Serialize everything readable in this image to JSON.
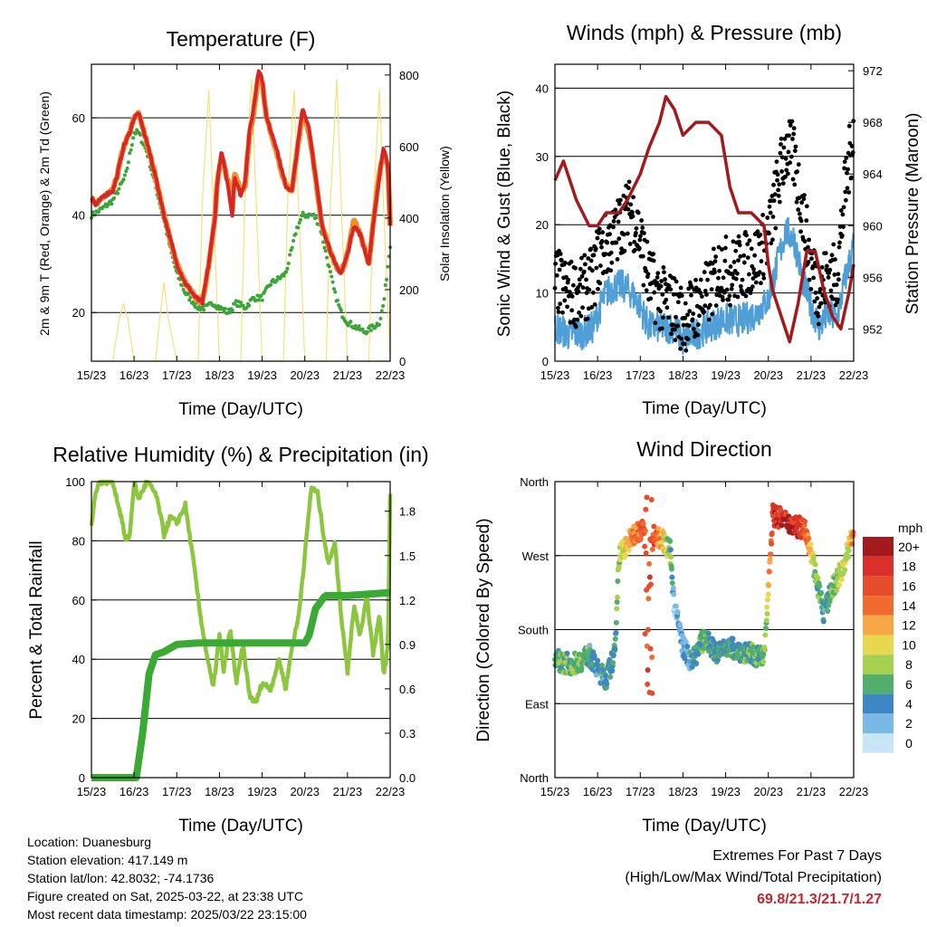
{
  "charts": {
    "temperature": {
      "title": "Temperature (F)",
      "ylabel_left": "2m & 9m T (Red, Orange) & 2m Td (Green)",
      "ylabel_right": "Solar Insolation (Yellow)",
      "xlabel": "Time (Day/UTC)"
    },
    "winds": {
      "title": "Winds (mph) & Pressure (mb)",
      "ylabel_left": "Sonic Wind & Gust (Blue, Black)",
      "ylabel_right": "Station Pressure (Maroon)",
      "xlabel": "Time (Day/UTC)"
    },
    "humidity": {
      "title": "Relative Humidity (%) & Precipitation (in)",
      "ylabel_left": "Percent & Total Rainfall",
      "xlabel": "Time (Day/UTC)"
    },
    "direction": {
      "title": "Wind Direction",
      "ylabel_left": "Direction (Colored By Speed)",
      "xlabel": "Time (Day/UTC)",
      "legend_title": "mph"
    }
  },
  "info": {
    "location": "Location: Duanesburg",
    "elevation": "Station elevation: 417.149 m",
    "latlon": "Station lat/lon: 42.8032; -74.1736",
    "created": "Figure created on Sat, 2025-03-22, at 23:38 UTC",
    "recent": "Most recent data timestamp: 2025/03/22 23:15:00"
  },
  "extremes": {
    "heading": "Extremes For Past 7 Days",
    "subheading": "(High/Low/Max Wind/Total Precipitation)",
    "values": "69.8/21.3/21.7/1.27"
  },
  "chart_data": [
    {
      "type": "line",
      "title": "Temperature (F)",
      "xlabel": "Time (Day/UTC)",
      "ylabel": "2m & 9m T (Red, Orange) & 2m Td (Green)",
      "y2label": "Solar Insolation (Yellow)",
      "x_ticks": [
        "15/23",
        "16/23",
        "17/23",
        "18/23",
        "19/23",
        "20/23",
        "21/23",
        "22/23"
      ],
      "xlim": [
        0,
        7
      ],
      "ylim": [
        10,
        71
      ],
      "y_ticks": [
        20,
        40,
        60
      ],
      "y2lim": [
        0,
        830
      ],
      "y2_ticks": [
        0,
        200,
        400,
        600,
        800
      ],
      "colors": {
        "t2m": "#d62728",
        "t9m": "#f28e2b",
        "td": "#3aa53a",
        "solar": "#f7e27a"
      },
      "series": [
        {
          "name": "2m T",
          "x": [
            0,
            0.1,
            0.3,
            0.5,
            0.6,
            0.75,
            0.9,
            1.0,
            1.1,
            1.3,
            1.5,
            1.7,
            1.85,
            2.0,
            2.2,
            2.45,
            2.6,
            2.75,
            2.9,
            2.95,
            3.05,
            3.2,
            3.3,
            3.35,
            3.5,
            3.6,
            3.7,
            3.8,
            3.92,
            4.0,
            4.1,
            4.3,
            4.55,
            4.7,
            4.8,
            4.95,
            5.1,
            5.25,
            5.4,
            5.55,
            5.7,
            5.85,
            6.0,
            6.15,
            6.3,
            6.5,
            6.6,
            6.75,
            6.85,
            6.95,
            7.0
          ],
          "y": [
            44,
            42,
            44,
            45,
            48,
            54,
            57,
            60,
            61,
            55,
            48,
            40,
            35,
            30,
            26,
            23,
            22,
            30,
            40,
            47,
            53,
            46,
            40,
            48,
            44,
            47,
            57,
            62,
            70,
            68,
            60,
            55,
            46,
            45,
            52,
            62,
            58,
            48,
            38,
            34,
            30,
            28,
            32,
            38,
            36,
            30,
            38,
            48,
            54,
            50,
            38
          ]
        },
        {
          "name": "9m T",
          "x": [
            0,
            0.1,
            0.3,
            0.5,
            0.6,
            0.75,
            0.9,
            1.0,
            1.1,
            1.3,
            1.5,
            1.7,
            1.85,
            2.0,
            2.2,
            2.45,
            2.6,
            2.75,
            2.9,
            2.95,
            3.05,
            3.2,
            3.3,
            3.35,
            3.5,
            3.6,
            3.7,
            3.8,
            3.92,
            4.0,
            4.1,
            4.3,
            4.55,
            4.7,
            4.8,
            4.95,
            5.1,
            5.25,
            5.4,
            5.55,
            5.7,
            5.85,
            6.0,
            6.15,
            6.3,
            6.5,
            6.6,
            6.75,
            6.85,
            6.95,
            7.0
          ],
          "y": [
            44,
            42,
            44,
            45,
            48,
            54,
            57,
            60,
            61,
            55,
            48,
            40,
            35,
            30,
            26,
            23,
            22,
            30,
            40,
            47,
            52,
            47,
            41,
            49,
            45,
            46,
            56,
            61,
            69,
            67,
            60,
            54,
            46,
            45,
            52,
            61,
            57,
            48,
            38,
            34,
            30,
            28,
            32,
            39,
            36,
            30,
            38,
            49,
            53,
            50,
            38
          ]
        },
        {
          "name": "2m Td",
          "x": [
            0,
            0.2,
            0.5,
            0.8,
            1.0,
            1.1,
            1.3,
            1.5,
            1.7,
            1.85,
            2.0,
            2.2,
            2.5,
            2.7,
            2.85,
            3.0,
            3.2,
            3.4,
            3.6,
            3.8,
            4.0,
            4.2,
            4.4,
            4.55,
            4.7,
            4.8,
            4.95,
            5.2,
            5.35,
            5.5,
            5.6,
            5.7,
            5.85,
            6.0,
            6.2,
            6.4,
            6.6,
            6.75,
            6.85,
            6.95,
            7.0
          ],
          "y": [
            40,
            41,
            43,
            48,
            57,
            57,
            53,
            46,
            39,
            33,
            28,
            24,
            21,
            21,
            22,
            21,
            20,
            22,
            21,
            23,
            23,
            26,
            27,
            28,
            33,
            37,
            40,
            40,
            38,
            32,
            28,
            24,
            20,
            18,
            17,
            16,
            17,
            18,
            22,
            30,
            34
          ]
        },
        {
          "name": "Solar Insolation",
          "axis": "y2",
          "x": [
            0.5,
            0.65,
            0.75,
            0.85,
            1.0,
            1.5,
            1.6,
            1.7,
            1.8,
            2.0,
            2.5,
            2.6,
            2.75,
            2.85,
            3.0,
            3.5,
            3.6,
            3.75,
            3.85,
            4.0,
            4.5,
            4.6,
            4.75,
            4.85,
            5.0,
            5.5,
            5.6,
            5.75,
            5.85,
            6.0,
            6.5,
            6.6,
            6.75,
            6.85,
            7.0
          ],
          "y": [
            0,
            120,
            160,
            120,
            0,
            0,
            120,
            220,
            120,
            0,
            0,
            450,
            760,
            450,
            0,
            0,
            480,
            790,
            480,
            0,
            0,
            450,
            760,
            450,
            0,
            0,
            450,
            790,
            450,
            0,
            0,
            420,
            760,
            420,
            0
          ]
        }
      ]
    },
    {
      "type": "line",
      "title": "Winds (mph) & Pressure (mb)",
      "xlabel": "Time (Day/UTC)",
      "ylabel": "Sonic Wind & Gust (Blue, Black)",
      "y2label": "Station Pressure (Maroon)",
      "x_ticks": [
        "15/23",
        "16/23",
        "17/23",
        "18/23",
        "19/23",
        "20/23",
        "21/23",
        "22/23"
      ],
      "xlim": [
        0,
        7
      ],
      "ylim": [
        0,
        43.5
      ],
      "y_ticks": [
        0,
        10,
        20,
        30,
        40
      ],
      "y2lim": [
        949.5,
        972.5
      ],
      "y2_ticks": [
        952,
        956,
        960,
        964,
        968,
        972
      ],
      "colors": {
        "wind": "#4f9fd6",
        "gust": "#000000",
        "pressure": "#a3191c"
      },
      "series": [
        {
          "name": "Sonic Wind",
          "x": [
            0,
            0.3,
            0.6,
            0.9,
            1.0,
            1.2,
            1.4,
            1.6,
            1.8,
            2.0,
            2.2,
            2.5,
            2.8,
            3.0,
            3.3,
            3.6,
            3.9,
            4.1,
            4.4,
            4.7,
            5.0,
            5.2,
            5.4,
            5.6,
            5.8,
            6.0,
            6.2,
            6.4,
            6.6,
            6.8,
            7.0
          ],
          "y": [
            5,
            4,
            4,
            5,
            7,
            10,
            11,
            11,
            10,
            8,
            5,
            5,
            5,
            3,
            4,
            5,
            6,
            6,
            6,
            7,
            9,
            14,
            19,
            18,
            12,
            8,
            5,
            7,
            6,
            12,
            17
          ]
        },
        {
          "name": "Gust",
          "x": [
            0,
            0.3,
            0.6,
            0.9,
            1.0,
            1.2,
            1.4,
            1.6,
            1.8,
            2.0,
            2.2,
            2.5,
            2.8,
            3.0,
            3.3,
            3.6,
            3.9,
            4.1,
            4.4,
            4.7,
            5.0,
            5.2,
            5.4,
            5.6,
            5.8,
            6.0,
            6.2,
            6.4,
            6.6,
            6.8,
            7.0
          ],
          "y": [
            12,
            10,
            10,
            12,
            15,
            17,
            18,
            21,
            22,
            18,
            12,
            9,
            8,
            6,
            8,
            10,
            14,
            13,
            14,
            15,
            18,
            25,
            31,
            30,
            22,
            14,
            10,
            13,
            12,
            25,
            34
          ]
        },
        {
          "name": "Station Pressure",
          "axis": "y2",
          "x": [
            0,
            0.2,
            0.5,
            0.8,
            1.0,
            1.2,
            1.5,
            1.7,
            2.0,
            2.2,
            2.45,
            2.6,
            2.8,
            3.0,
            3.3,
            3.6,
            3.9,
            4.1,
            4.3,
            4.6,
            4.9,
            5.0,
            5.1,
            5.3,
            5.5,
            5.7,
            5.9,
            6.1,
            6.3,
            6.5,
            6.7,
            6.9,
            7.0
          ],
          "y": [
            963.5,
            965,
            962,
            960,
            960,
            961,
            961,
            962,
            964,
            966,
            968,
            970,
            969,
            967,
            968,
            968,
            967,
            963,
            961,
            961,
            960,
            957,
            955,
            953,
            951,
            954,
            958,
            958,
            955,
            953,
            952,
            955,
            957
          ]
        }
      ]
    },
    {
      "type": "line",
      "title": "Relative Humidity (%) & Precipitation (in)",
      "xlabel": "Time (Day/UTC)",
      "ylabel": "Percent & Total Rainfall",
      "x_ticks": [
        "15/23",
        "16/23",
        "17/23",
        "18/23",
        "19/23",
        "20/23",
        "21/23",
        "22/23"
      ],
      "xlim": [
        0,
        7
      ],
      "ylim": [
        0,
        100
      ],
      "y_ticks": [
        0,
        20,
        40,
        60,
        80,
        100
      ],
      "y2lim": [
        0,
        2.0
      ],
      "y2_ticks": [
        0.0,
        0.3,
        0.6,
        0.9,
        1.2,
        1.5,
        1.8
      ],
      "colors": {
        "rh": "#8cc63f",
        "precip": "#3aaa35"
      },
      "series": [
        {
          "name": "Relative Humidity",
          "x": [
            0,
            0.1,
            0.2,
            0.3,
            0.5,
            0.7,
            0.8,
            0.9,
            1.0,
            1.1,
            1.3,
            1.5,
            1.6,
            1.7,
            1.85,
            2.0,
            2.2,
            2.4,
            2.55,
            2.7,
            2.85,
            3.0,
            3.1,
            3.25,
            3.4,
            3.55,
            3.7,
            3.85,
            4.0,
            4.2,
            4.4,
            4.55,
            4.7,
            4.85,
            5.0,
            5.15,
            5.3,
            5.4,
            5.55,
            5.7,
            5.85,
            6.0,
            6.15,
            6.3,
            6.45,
            6.6,
            6.75,
            6.85,
            6.95,
            7.0
          ],
          "y": [
            85,
            97,
            100,
            100,
            100,
            88,
            80,
            82,
            100,
            94,
            100,
            96,
            90,
            82,
            88,
            86,
            92,
            72,
            55,
            42,
            30,
            48,
            36,
            50,
            32,
            45,
            28,
            25,
            32,
            30,
            40,
            30,
            44,
            54,
            75,
            98,
            96,
            86,
            72,
            80,
            55,
            36,
            58,
            48,
            62,
            42,
            55,
            34,
            45,
            96
          ]
        },
        {
          "name": "Total Precipitation",
          "axis": "y2",
          "x": [
            0,
            0.9,
            1.05,
            1.2,
            1.35,
            1.5,
            1.7,
            2.0,
            2.5,
            3.0,
            4.0,
            5.0,
            5.1,
            5.25,
            5.45,
            5.5,
            6.0,
            7.0
          ],
          "y": [
            0,
            0,
            0,
            0.3,
            0.7,
            0.83,
            0.85,
            0.9,
            0.91,
            0.91,
            0.91,
            0.91,
            0.96,
            1.14,
            1.22,
            1.23,
            1.23,
            1.25
          ]
        }
      ]
    },
    {
      "type": "scatter",
      "title": "Wind Direction",
      "xlabel": "Time (Day/UTC)",
      "ylabel": "Direction (Colored By Speed)",
      "x_ticks": [
        "15/23",
        "16/23",
        "17/23",
        "18/23",
        "19/23",
        "20/23",
        "21/23",
        "22/23"
      ],
      "xlim": [
        0,
        7
      ],
      "ylim": [
        0,
        360
      ],
      "y_ticks": [
        0,
        90,
        180,
        270,
        360
      ],
      "y_tick_labels": [
        "North",
        "East",
        "South",
        "West",
        "North"
      ],
      "legend": {
        "title": "mph",
        "labels": [
          "20+",
          "18",
          "16",
          "14",
          "12",
          "10",
          "8",
          "6",
          "4",
          "2",
          "0"
        ],
        "colors": [
          "#a31a1c",
          "#d9302a",
          "#e84d2b",
          "#f26b2e",
          "#f9a646",
          "#e8d84f",
          "#a6d050",
          "#51ae6b",
          "#3f86c4",
          "#7ab8e6",
          "#c6e6f7"
        ]
      },
      "series": [
        {
          "name": "Direction",
          "x": [
            0,
            0.2,
            0.4,
            0.6,
            0.8,
            1.0,
            1.2,
            1.4,
            1.5,
            1.7,
            1.9,
            2.1,
            2.3,
            2.5,
            2.7,
            2.8,
            3.0,
            3.2,
            3.5,
            3.8,
            4.0,
            4.3,
            4.6,
            4.9,
            5.1,
            5.3,
            5.5,
            5.7,
            5.9,
            6.1,
            6.3,
            6.5,
            6.7,
            6.9,
            7.0
          ],
          "y": [
            145,
            140,
            138,
            142,
            150,
            130,
            120,
            150,
            270,
            285,
            300,
            300,
            295,
            290,
            275,
            210,
            160,
            140,
            170,
            150,
            160,
            155,
            150,
            145,
            320,
            315,
            310,
            305,
            300,
            250,
            200,
            230,
            250,
            280,
            305
          ],
          "speed": [
            5,
            6,
            6,
            7,
            5,
            4,
            5,
            5,
            8,
            11,
            14,
            15,
            16,
            12,
            6,
            2,
            3,
            4,
            6,
            5,
            5,
            5,
            6,
            6,
            17,
            18,
            19,
            18,
            15,
            7,
            4,
            6,
            8,
            10,
            14
          ]
        }
      ]
    }
  ]
}
